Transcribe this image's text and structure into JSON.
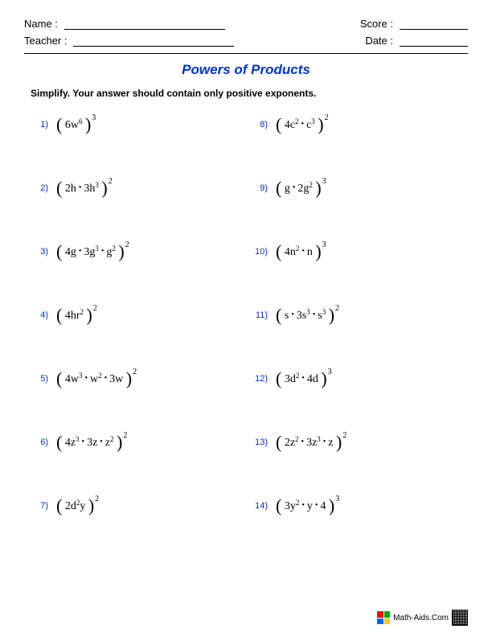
{
  "header": {
    "name_label": "Name :",
    "teacher_label": "Teacher :",
    "score_label": "Score :",
    "date_label": "Date :"
  },
  "title": {
    "text": "Powers of Products",
    "color": "#0033cc"
  },
  "instructions": "Simplify. Your answer should contain only positive exponents.",
  "problem_number_color": "#0033cc",
  "problems_left": [
    {
      "num": "1)",
      "terms": [
        {
          "c": "6",
          "v": "w",
          "e": "6"
        }
      ],
      "outer": "3"
    },
    {
      "num": "2)",
      "terms": [
        {
          "c": "2",
          "v": "h",
          "e": ""
        },
        {
          "c": "3",
          "v": "h",
          "e": "3"
        }
      ],
      "outer": "2"
    },
    {
      "num": "3)",
      "terms": [
        {
          "c": "4",
          "v": "g",
          "e": ""
        },
        {
          "c": "3",
          "v": "g",
          "e": "3"
        },
        {
          "c": "",
          "v": "g",
          "e": "2"
        }
      ],
      "outer": "2"
    },
    {
      "num": "4)",
      "terms": [
        {
          "c": "4",
          "v": "hr",
          "e": "2"
        }
      ],
      "outer": "2"
    },
    {
      "num": "5)",
      "terms": [
        {
          "c": "4",
          "v": "w",
          "e": "3"
        },
        {
          "c": "",
          "v": "w",
          "e": "2"
        },
        {
          "c": "3",
          "v": "w",
          "e": ""
        }
      ],
      "outer": "2"
    },
    {
      "num": "6)",
      "terms": [
        {
          "c": "4",
          "v": "z",
          "e": "3"
        },
        {
          "c": "3",
          "v": "z",
          "e": ""
        },
        {
          "c": "",
          "v": "z",
          "e": "2"
        }
      ],
      "outer": "2"
    },
    {
      "num": "7)",
      "terms": [
        {
          "c": "2",
          "v": "d",
          "e": "2",
          "v2": "y"
        }
      ],
      "outer": "2"
    }
  ],
  "problems_right": [
    {
      "num": "8)",
      "terms": [
        {
          "c": "4",
          "v": "c",
          "e": "2"
        },
        {
          "c": "",
          "v": "c",
          "e": "3"
        }
      ],
      "outer": "2"
    },
    {
      "num": "9)",
      "terms": [
        {
          "c": "",
          "v": "g",
          "e": ""
        },
        {
          "c": "2",
          "v": "g",
          "e": "2"
        }
      ],
      "outer": "3"
    },
    {
      "num": "10)",
      "terms": [
        {
          "c": "4",
          "v": "n",
          "e": "2"
        },
        {
          "c": "",
          "v": "n",
          "e": ""
        }
      ],
      "outer": "3"
    },
    {
      "num": "11)",
      "terms": [
        {
          "c": "",
          "v": "s",
          "e": ""
        },
        {
          "c": "3",
          "v": "s",
          "e": "3"
        },
        {
          "c": "",
          "v": "s",
          "e": "3"
        }
      ],
      "outer": "2"
    },
    {
      "num": "12)",
      "terms": [
        {
          "c": "3",
          "v": "d",
          "e": "2"
        },
        {
          "c": "4",
          "v": "d",
          "e": ""
        }
      ],
      "outer": "3"
    },
    {
      "num": "13)",
      "terms": [
        {
          "c": "2",
          "v": "z",
          "e": "2"
        },
        {
          "c": "3",
          "v": "z",
          "e": "3"
        },
        {
          "c": "",
          "v": "z",
          "e": ""
        }
      ],
      "outer": "2"
    },
    {
      "num": "14)",
      "terms": [
        {
          "c": "3",
          "v": "y",
          "e": "2"
        },
        {
          "c": "",
          "v": "y",
          "e": ""
        },
        {
          "c": "4",
          "v": "",
          "e": ""
        }
      ],
      "outer": "3"
    }
  ],
  "footer": {
    "text": "Math-Aids.Com",
    "logo_colors": [
      "#ff0000",
      "#00aa00",
      "#0066ff",
      "#ffcc00"
    ]
  }
}
